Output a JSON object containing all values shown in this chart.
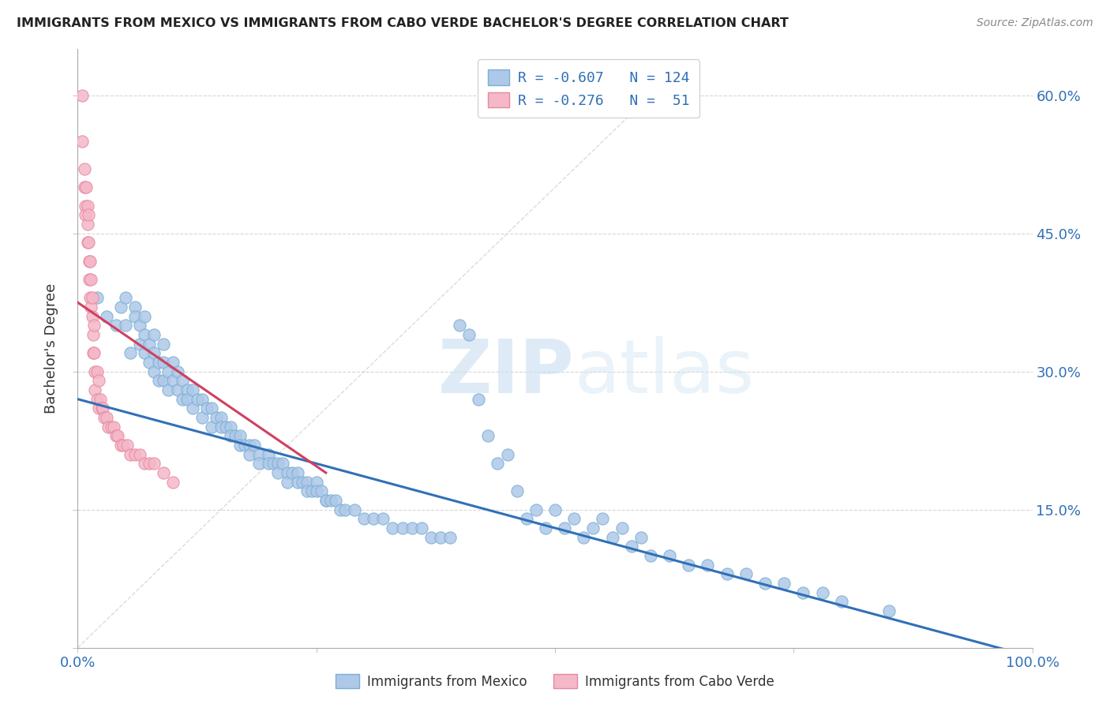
{
  "title": "IMMIGRANTS FROM MEXICO VS IMMIGRANTS FROM CABO VERDE BACHELOR'S DEGREE CORRELATION CHART",
  "source": "Source: ZipAtlas.com",
  "ylabel": "Bachelor's Degree",
  "watermark_part1": "ZIP",
  "watermark_part2": "atlas",
  "legend_line1": "R = -0.607   N = 124",
  "legend_line2": "R = -0.276   N =  51",
  "color_blue_fill": "#aec8e8",
  "color_blue_edge": "#7aafd4",
  "color_pink_fill": "#f4b8c8",
  "color_pink_edge": "#e888a0",
  "color_line_blue": "#3070b8",
  "color_line_pink": "#d04060",
  "color_line_diag": "#cccccc",
  "color_grid": "#cccccc",
  "color_tick_label": "#3070b8",
  "xlim": [
    0.0,
    1.0
  ],
  "ylim": [
    0.0,
    0.65
  ],
  "xtick_positions": [
    0.0,
    0.25,
    0.5,
    0.75,
    1.0
  ],
  "ytick_positions": [
    0.0,
    0.15,
    0.3,
    0.45,
    0.6
  ],
  "xtick_labels_left": [
    "0.0%",
    "",
    "",
    "",
    ""
  ],
  "xtick_labels_right": [
    "",
    "",
    "",
    "",
    "100.0%"
  ],
  "ytick_labels_right": [
    "",
    "15.0%",
    "30.0%",
    "45.0%",
    "60.0%"
  ],
  "blue_line_x": [
    0.0,
    1.0
  ],
  "blue_line_y": [
    0.27,
    -0.01
  ],
  "pink_line_x": [
    0.0,
    0.26
  ],
  "pink_line_y": [
    0.375,
    0.19
  ],
  "diag_line_x": [
    0.0,
    0.6
  ],
  "diag_line_y": [
    0.0,
    0.6
  ],
  "mexico_x": [
    0.02,
    0.03,
    0.04,
    0.045,
    0.05,
    0.055,
    0.05,
    0.06,
    0.06,
    0.065,
    0.065,
    0.07,
    0.07,
    0.07,
    0.075,
    0.075,
    0.08,
    0.08,
    0.08,
    0.085,
    0.085,
    0.09,
    0.09,
    0.09,
    0.095,
    0.095,
    0.1,
    0.1,
    0.105,
    0.105,
    0.11,
    0.11,
    0.115,
    0.115,
    0.12,
    0.12,
    0.125,
    0.13,
    0.13,
    0.135,
    0.14,
    0.14,
    0.145,
    0.15,
    0.15,
    0.155,
    0.16,
    0.16,
    0.165,
    0.17,
    0.17,
    0.175,
    0.18,
    0.18,
    0.185,
    0.19,
    0.19,
    0.2,
    0.2,
    0.205,
    0.21,
    0.21,
    0.215,
    0.22,
    0.22,
    0.225,
    0.23,
    0.23,
    0.235,
    0.24,
    0.24,
    0.245,
    0.25,
    0.25,
    0.255,
    0.26,
    0.26,
    0.265,
    0.27,
    0.275,
    0.28,
    0.29,
    0.3,
    0.31,
    0.32,
    0.33,
    0.34,
    0.35,
    0.36,
    0.37,
    0.38,
    0.39,
    0.4,
    0.41,
    0.42,
    0.43,
    0.44,
    0.45,
    0.46,
    0.47,
    0.48,
    0.49,
    0.5,
    0.51,
    0.52,
    0.53,
    0.54,
    0.55,
    0.56,
    0.57,
    0.58,
    0.59,
    0.6,
    0.62,
    0.64,
    0.66,
    0.68,
    0.7,
    0.72,
    0.74,
    0.76,
    0.78,
    0.8,
    0.85
  ],
  "mexico_y": [
    0.38,
    0.36,
    0.35,
    0.37,
    0.35,
    0.32,
    0.38,
    0.37,
    0.36,
    0.35,
    0.33,
    0.36,
    0.34,
    0.32,
    0.33,
    0.31,
    0.34,
    0.32,
    0.3,
    0.31,
    0.29,
    0.33,
    0.31,
    0.29,
    0.3,
    0.28,
    0.31,
    0.29,
    0.3,
    0.28,
    0.29,
    0.27,
    0.28,
    0.27,
    0.28,
    0.26,
    0.27,
    0.27,
    0.25,
    0.26,
    0.26,
    0.24,
    0.25,
    0.25,
    0.24,
    0.24,
    0.24,
    0.23,
    0.23,
    0.23,
    0.22,
    0.22,
    0.22,
    0.21,
    0.22,
    0.21,
    0.2,
    0.21,
    0.2,
    0.2,
    0.2,
    0.19,
    0.2,
    0.19,
    0.18,
    0.19,
    0.19,
    0.18,
    0.18,
    0.18,
    0.17,
    0.17,
    0.18,
    0.17,
    0.17,
    0.16,
    0.16,
    0.16,
    0.16,
    0.15,
    0.15,
    0.15,
    0.14,
    0.14,
    0.14,
    0.13,
    0.13,
    0.13,
    0.13,
    0.12,
    0.12,
    0.12,
    0.35,
    0.34,
    0.27,
    0.23,
    0.2,
    0.21,
    0.17,
    0.14,
    0.15,
    0.13,
    0.15,
    0.13,
    0.14,
    0.12,
    0.13,
    0.14,
    0.12,
    0.13,
    0.11,
    0.12,
    0.1,
    0.1,
    0.09,
    0.09,
    0.08,
    0.08,
    0.07,
    0.07,
    0.06,
    0.06,
    0.05,
    0.04
  ],
  "caboverde_x": [
    0.005,
    0.005,
    0.007,
    0.007,
    0.008,
    0.008,
    0.009,
    0.01,
    0.01,
    0.01,
    0.011,
    0.011,
    0.012,
    0.012,
    0.013,
    0.013,
    0.014,
    0.014,
    0.015,
    0.015,
    0.016,
    0.016,
    0.017,
    0.017,
    0.018,
    0.018,
    0.02,
    0.02,
    0.022,
    0.022,
    0.024,
    0.025,
    0.026,
    0.028,
    0.03,
    0.032,
    0.035,
    0.038,
    0.04,
    0.042,
    0.045,
    0.048,
    0.052,
    0.055,
    0.06,
    0.065,
    0.07,
    0.075,
    0.08,
    0.09,
    0.1
  ],
  "caboverde_y": [
    0.6,
    0.55,
    0.52,
    0.5,
    0.48,
    0.47,
    0.5,
    0.48,
    0.46,
    0.44,
    0.47,
    0.44,
    0.42,
    0.4,
    0.42,
    0.38,
    0.4,
    0.37,
    0.38,
    0.36,
    0.34,
    0.32,
    0.35,
    0.32,
    0.3,
    0.28,
    0.3,
    0.27,
    0.29,
    0.26,
    0.27,
    0.26,
    0.26,
    0.25,
    0.25,
    0.24,
    0.24,
    0.24,
    0.23,
    0.23,
    0.22,
    0.22,
    0.22,
    0.21,
    0.21,
    0.21,
    0.2,
    0.2,
    0.2,
    0.19,
    0.18
  ]
}
